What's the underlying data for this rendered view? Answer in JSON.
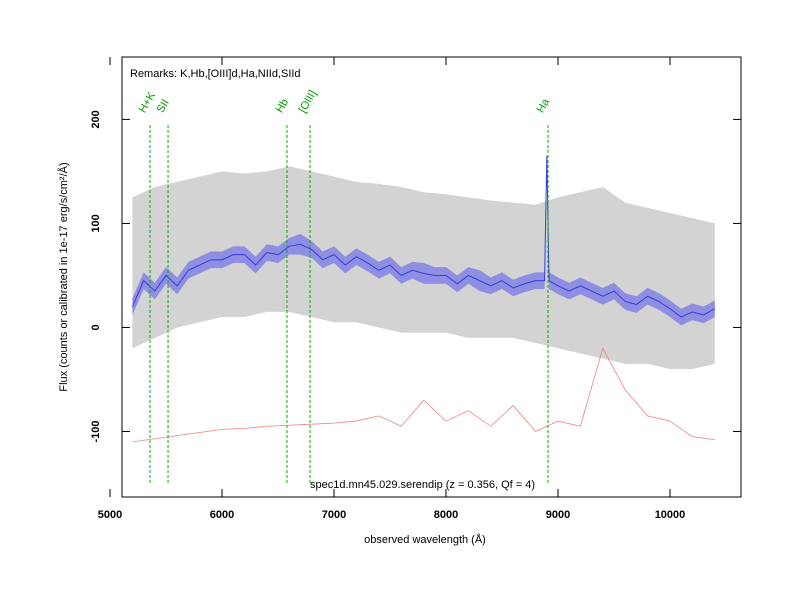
{
  "chart_data": {
    "type": "spectrum",
    "remarks": "Remarks: K,Hb,[OIII]d,Ha,NIId,SIId",
    "caption": "spec1d.mn45.029.serendip (z = 0.356, Qf = 4)",
    "x_label": "observed wavelength (Å)",
    "y_label": "Flux (counts or calibrated in 1e-17 erg/s/cm²/Å)",
    "xlim": [
      5107,
      10634
    ],
    "ylim": [
      -163,
      260
    ],
    "xticks": [
      5000,
      6000,
      7000,
      8000,
      9000,
      10000
    ],
    "yticks": [
      -100,
      0,
      100,
      200
    ],
    "raw": {
      "color": "#c8c8c8",
      "x": [
        5200,
        5400,
        5600,
        5800,
        6000,
        6200,
        6400,
        6600,
        6800,
        7000,
        7200,
        7400,
        7600,
        7800,
        8000,
        8200,
        8400,
        8600,
        8800,
        9000,
        9200,
        9400,
        9600,
        9800,
        10000,
        10200,
        10400
      ],
      "upper": [
        125,
        135,
        140,
        145,
        150,
        148,
        150,
        155,
        150,
        145,
        140,
        138,
        135,
        130,
        128,
        125,
        122,
        120,
        118,
        125,
        130,
        135,
        120,
        115,
        110,
        105,
        100
      ],
      "lower": [
        -20,
        -10,
        0,
        5,
        10,
        10,
        15,
        15,
        10,
        5,
        5,
        0,
        -5,
        -5,
        -5,
        -10,
        -10,
        -10,
        -15,
        -20,
        -25,
        -30,
        -35,
        -35,
        -40,
        -40,
        -35
      ]
    },
    "smoothed": {
      "color": "#3a3ae0",
      "band_color": "#7070e8",
      "x": [
        5200,
        5300,
        5400,
        5500,
        5600,
        5700,
        5800,
        5900,
        6000,
        6100,
        6200,
        6300,
        6400,
        6500,
        6600,
        6700,
        6800,
        6900,
        7000,
        7100,
        7200,
        7300,
        7400,
        7500,
        7600,
        7700,
        7800,
        7900,
        8000,
        8100,
        8200,
        8300,
        8400,
        8500,
        8600,
        8700,
        8800,
        8880,
        8900,
        8920,
        9000,
        9100,
        9200,
        9300,
        9400,
        9500,
        9600,
        9700,
        9800,
        9900,
        10000,
        10100,
        10200,
        10300,
        10400
      ],
      "values": [
        20,
        45,
        35,
        50,
        40,
        55,
        60,
        65,
        65,
        70,
        70,
        60,
        72,
        70,
        78,
        80,
        75,
        65,
        70,
        60,
        68,
        62,
        55,
        60,
        50,
        55,
        52,
        50,
        50,
        42,
        50,
        45,
        40,
        45,
        38,
        42,
        45,
        45,
        165,
        45,
        40,
        35,
        40,
        35,
        30,
        35,
        25,
        22,
        30,
        25,
        18,
        10,
        15,
        12,
        18
      ],
      "upper": [
        28,
        53,
        43,
        58,
        48,
        63,
        68,
        73,
        73,
        78,
        78,
        68,
        80,
        78,
        86,
        90,
        83,
        73,
        78,
        68,
        76,
        70,
        63,
        68,
        58,
        63,
        62,
        58,
        58,
        50,
        58,
        55,
        48,
        53,
        46,
        50,
        53,
        53,
        168,
        53,
        48,
        43,
        48,
        43,
        38,
        43,
        33,
        30,
        38,
        33,
        26,
        18,
        23,
        20,
        26
      ],
      "lower": [
        12,
        37,
        27,
        42,
        32,
        47,
        52,
        57,
        57,
        62,
        62,
        52,
        64,
        62,
        70,
        70,
        67,
        57,
        62,
        52,
        60,
        54,
        47,
        52,
        42,
        47,
        42,
        42,
        42,
        34,
        42,
        35,
        32,
        37,
        30,
        34,
        37,
        37,
        162,
        37,
        32,
        27,
        32,
        27,
        22,
        27,
        17,
        14,
        22,
        17,
        10,
        2,
        7,
        4,
        10
      ]
    },
    "sky": {
      "color": "#f08080",
      "x": [
        5200,
        5400,
        5600,
        5800,
        6000,
        6200,
        6400,
        6600,
        6800,
        7000,
        7200,
        7400,
        7600,
        7800,
        8000,
        8200,
        8400,
        8600,
        8800,
        9000,
        9200,
        9400,
        9600,
        9800,
        10000,
        10200,
        10400
      ],
      "values": [
        -110,
        -107,
        -104,
        -101,
        -98,
        -97,
        -95,
        -94,
        -93,
        -92,
        -90,
        -85,
        -95,
        -70,
        -90,
        -80,
        -95,
        -75,
        -100,
        -90,
        -95,
        -20,
        -60,
        -85,
        -90,
        -105,
        -108
      ]
    },
    "lines": {
      "color": "#00b000",
      "names": [
        "H+K",
        "SII",
        "Hb",
        "[OIII]",
        "Ha"
      ],
      "x": [
        5357,
        5518,
        6580,
        6786,
        8911
      ]
    }
  }
}
